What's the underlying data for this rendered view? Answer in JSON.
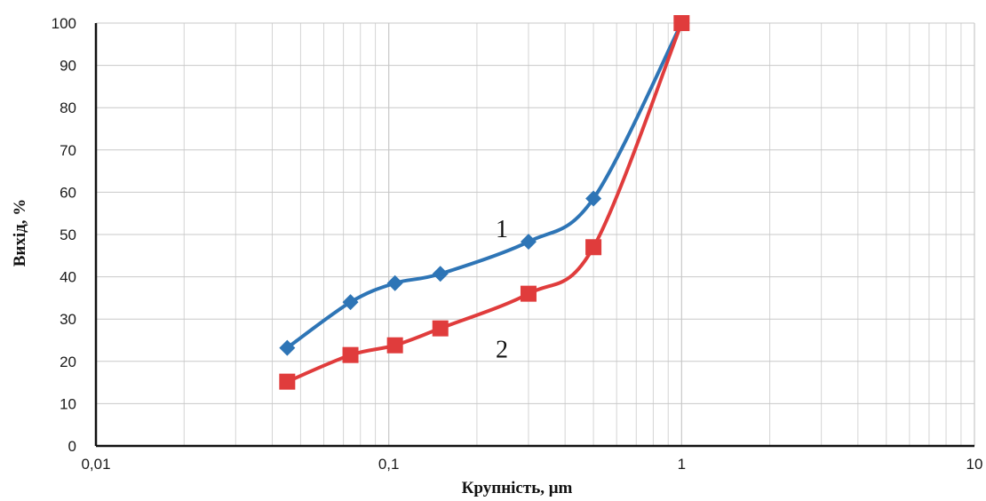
{
  "chart_data": {
    "type": "line",
    "xscale": "log",
    "xlim": [
      0.01,
      10
    ],
    "ylim": [
      0,
      100
    ],
    "xlabel": "Крупність, μm",
    "ylabel": "Вихід, %",
    "x_ticks": [
      "0,01",
      "0,1",
      "1",
      "10"
    ],
    "y_ticks": [
      "0",
      "10",
      "20",
      "30",
      "40",
      "50",
      "60",
      "70",
      "80",
      "90",
      "100"
    ],
    "grid": true,
    "series": [
      {
        "color": "#2e75b6",
        "marker": "diamond",
        "x": [
          0.045,
          0.074,
          0.105,
          0.15,
          0.3,
          0.5,
          1
        ],
        "y": [
          23.2,
          34,
          38.5,
          40.7,
          48.3,
          58.5,
          100
        ]
      },
      {
        "color": "#e03c3c",
        "marker": "square",
        "x": [
          0.045,
          0.074,
          0.105,
          0.15,
          0.3,
          0.5,
          1
        ],
        "y": [
          15.2,
          21.5,
          23.8,
          27.8,
          36,
          47,
          100
        ]
      }
    ],
    "annotations": [
      {
        "text": "1",
        "x": 0.3,
        "y": 51.5
      },
      {
        "text": "2",
        "x": 0.3,
        "y": 23
      }
    ]
  }
}
